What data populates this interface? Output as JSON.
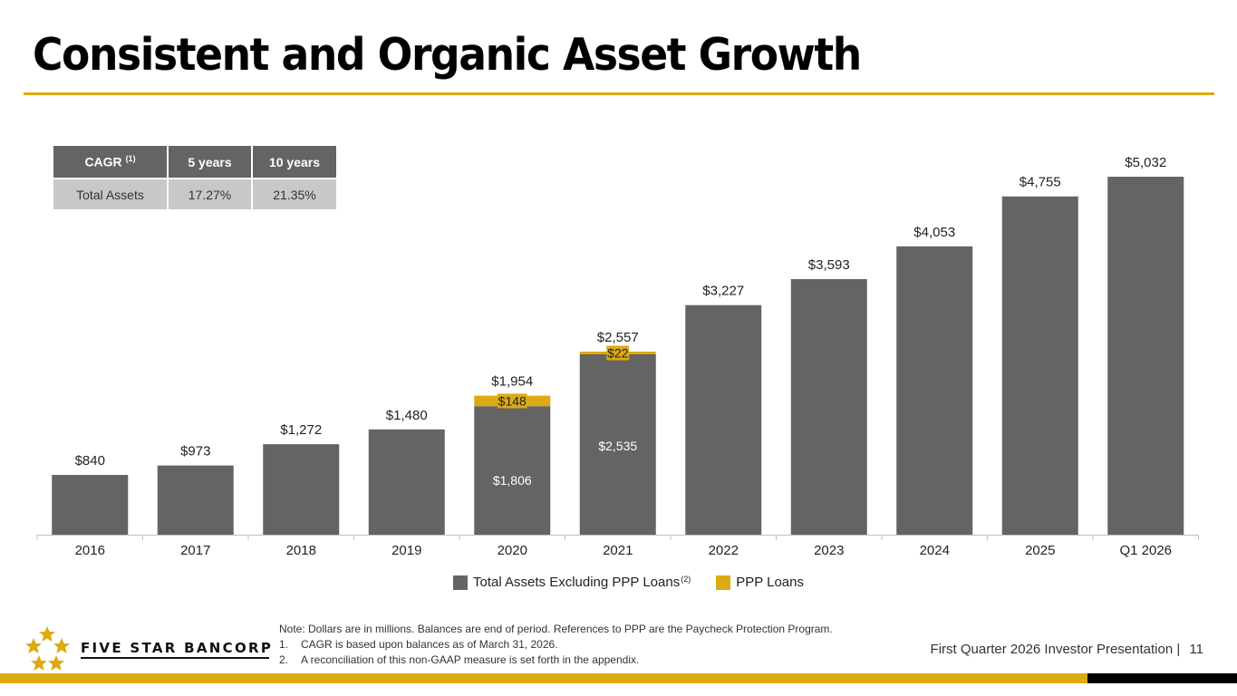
{
  "title": "Consistent and Organic Asset Growth",
  "cagr_table": {
    "headers": [
      "CAGR",
      "5 years",
      "10 years"
    ],
    "header_footnote": "(1)",
    "rows": [
      {
        "label": "Total Assets",
        "five_year": "17.27%",
        "ten_year": "21.35%"
      }
    ]
  },
  "chart_data": {
    "type": "bar",
    "stacked": true,
    "title": "",
    "xlabel": "",
    "ylabel": "",
    "ylim": [
      0,
      5032
    ],
    "grid": false,
    "legend_position": "bottom",
    "categories": [
      "2016",
      "2017",
      "2018",
      "2019",
      "2020",
      "2021",
      "2022",
      "2023",
      "2024",
      "2025",
      "Q1 2026"
    ],
    "series": [
      {
        "name": "Total Assets Excluding PPP Loans",
        "footnote": "(2)",
        "color": "#646464",
        "values": [
          840,
          973,
          1272,
          1480,
          1806,
          2535,
          3227,
          3593,
          4053,
          4755,
          5032
        ],
        "inner_labels": [
          null,
          null,
          null,
          null,
          "$1,806",
          "$2,535",
          null,
          null,
          null,
          null,
          null
        ]
      },
      {
        "name": "PPP Loans",
        "color": "#dcaa12",
        "values": [
          0,
          0,
          0,
          0,
          148,
          22,
          0,
          0,
          0,
          0,
          0
        ],
        "inner_labels": [
          null,
          null,
          null,
          null,
          "$148",
          "$22",
          null,
          null,
          null,
          null,
          null
        ]
      }
    ],
    "totals": [
      840,
      973,
      1272,
      1480,
      1954,
      2557,
      3227,
      3593,
      4053,
      4755,
      5032
    ],
    "total_labels": [
      "$840",
      "$973",
      "$1,272",
      "$1,480",
      "$1,954",
      "$2,557",
      "$3,227",
      "$3,593",
      "$4,053",
      "$4,755",
      "$5,032"
    ]
  },
  "legend": {
    "items": [
      {
        "label": "Total Assets Excluding PPP Loans",
        "footnote": "(2)",
        "color": "#646464"
      },
      {
        "label": "PPP Loans",
        "color": "#dcaa12"
      }
    ]
  },
  "logo": {
    "text": "FIVE STAR BANCORP"
  },
  "notes": {
    "intro": "Note: Dollars are in millions. Balances are end of period. References to PPP are the Paycheck Protection Program.",
    "items": [
      {
        "num": "1.",
        "text": "CAGR is based upon balances as of March 31, 2026."
      },
      {
        "num": "2.",
        "text": "A reconciliation of this non-GAAP measure is set forth in the appendix."
      }
    ]
  },
  "footer": {
    "text": "First Quarter 2026 Investor Presentation |",
    "page": "11"
  },
  "colors": {
    "accent": "#dcaa12",
    "bar": "#646464",
    "black": "#000000"
  }
}
